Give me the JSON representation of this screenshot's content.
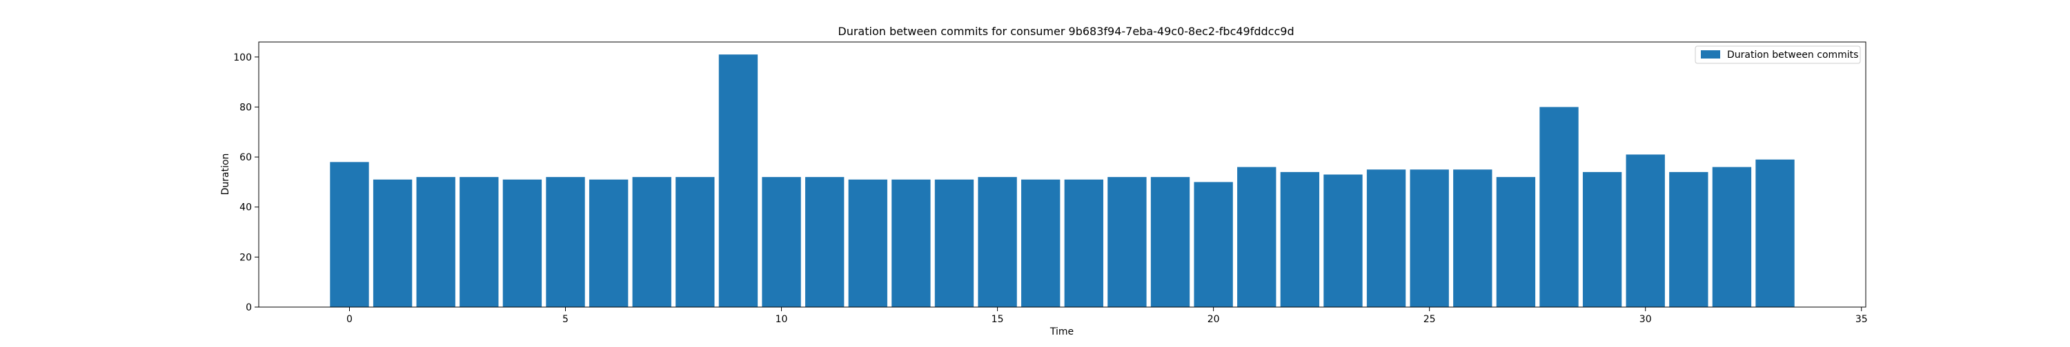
{
  "chart_data": {
    "type": "bar",
    "title": "Duration between commits for consumer 9b683f94-7eba-49c0-8ec2-fbc49fddcc9d",
    "xlabel": "Time",
    "ylabel": "Duration",
    "x": [
      0,
      1,
      2,
      3,
      4,
      5,
      6,
      7,
      8,
      9,
      10,
      11,
      12,
      13,
      14,
      15,
      16,
      17,
      18,
      19,
      20,
      21,
      22,
      23,
      24,
      25,
      26,
      27,
      28,
      29,
      30,
      31,
      32,
      33
    ],
    "values": [
      58,
      51,
      52,
      52,
      51,
      52,
      51,
      52,
      52,
      101,
      52,
      52,
      51,
      51,
      51,
      52,
      51,
      51,
      52,
      52,
      50,
      56,
      54,
      53,
      55,
      55,
      55,
      52,
      80,
      54,
      61,
      54,
      56,
      59
    ],
    "series_name": "Duration between commits",
    "xlim": [
      -2.1,
      35.1
    ],
    "ylim": [
      0,
      106
    ],
    "xticks": [
      "0",
      "5",
      "10",
      "15",
      "20",
      "25",
      "30",
      "35"
    ],
    "yticks": [
      "0",
      "20",
      "40",
      "60",
      "80",
      "100"
    ],
    "bar_color": "#1f77b4",
    "legend_placement": "top-right",
    "grid": false
  }
}
